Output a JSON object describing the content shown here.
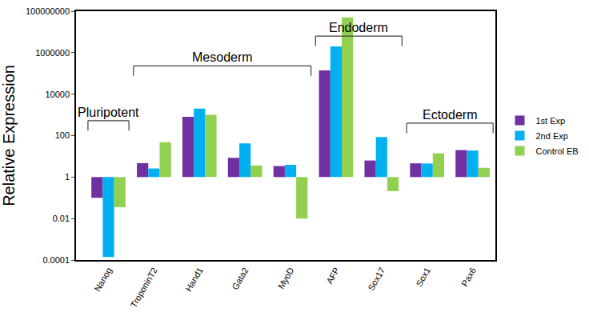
{
  "chart_data": {
    "type": "bar",
    "y_label": "Relative Expression",
    "categories": [
      "Nanog",
      "TroponinT2",
      "Hand1",
      "Gata2",
      "MyoD",
      "AFP",
      "Sox17",
      "Sox1",
      "Pax6"
    ],
    "series": [
      {
        "name": "1st Exp",
        "color": "#7030a0",
        "values": [
          0.1,
          4.7,
          800,
          8.5,
          3.4,
          140000,
          6.3,
          4.6,
          20
        ]
      },
      {
        "name": "2nd Exp",
        "color": "#00b0f0",
        "values": [
          0.00014,
          2.6,
          2000,
          42,
          3.9,
          2000000,
          85,
          4.5,
          19
        ]
      },
      {
        "name": "Control EB",
        "color": "#92d050",
        "values": [
          0.035,
          48,
          1000,
          3.6,
          0.01,
          50000000,
          0.21,
          14,
          2.8
        ]
      }
    ],
    "log": "y",
    "ylim": [
      0.0001,
      100000000
    ],
    "yticks": [
      0.0001,
      0.01,
      1,
      100,
      10000,
      1000000,
      100000000
    ],
    "grid": false,
    "legend": "right",
    "annotations": [
      {
        "text": "Pluripotent",
        "from": "Nanog",
        "to": "Nanog"
      },
      {
        "text": "Mesoderm",
        "from": "TroponinT2",
        "to": "MyoD"
      },
      {
        "text": "Endoderm",
        "from": "AFP",
        "to": "Sox17"
      },
      {
        "text": "Ectoderm",
        "from": "Sox1",
        "to": "Pax6"
      }
    ]
  }
}
